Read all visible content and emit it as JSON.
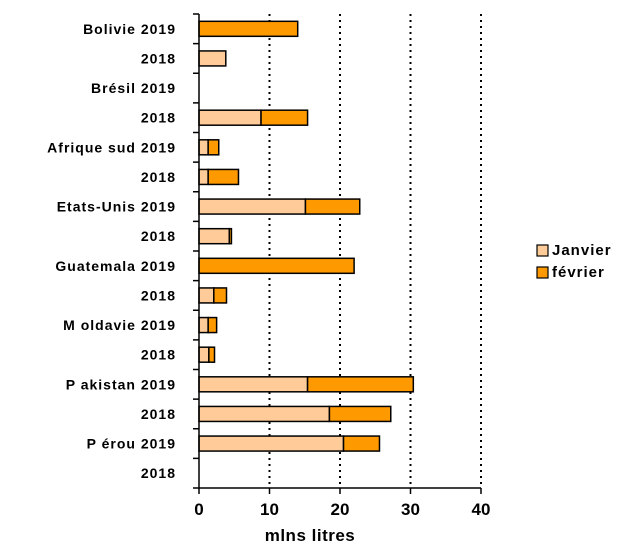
{
  "chart_data": {
    "type": "bar",
    "orientation": "horizontal",
    "stacked": true,
    "categories": [
      "Bolivie 2019",
      "2018",
      "Brésil 2019",
      "2018",
      "Afrique sud 2019",
      "2018",
      "Etats-Unis 2019",
      "2018",
      "Guatemala 2019",
      "2018",
      "M oldavie 2019",
      "2018",
      "P akistan 2019",
      "2018",
      "P érou 2019",
      "2018"
    ],
    "series": [
      {
        "name": "Janvier",
        "color": "#FFCC99",
        "values": [
          0,
          3.8,
          0,
          8.8,
          1.3,
          1.3,
          15.1,
          4.3,
          0,
          2.1,
          1.3,
          1.4,
          15.4,
          18.5,
          20.5,
          0
        ]
      },
      {
        "name": "février",
        "color": "#FF9900",
        "values": [
          14.0,
          0,
          0,
          6.6,
          1.5,
          4.3,
          7.7,
          0.3,
          22.0,
          1.8,
          1.2,
          0.8,
          15.0,
          8.7,
          5.1,
          0
        ]
      }
    ],
    "xlabel": "mlns litres",
    "xlim": [
      0,
      40
    ],
    "xticks": [
      "0",
      "10",
      "20",
      "30",
      "40"
    ],
    "gridlines": "vertical dotted",
    "legend_position": "right"
  }
}
